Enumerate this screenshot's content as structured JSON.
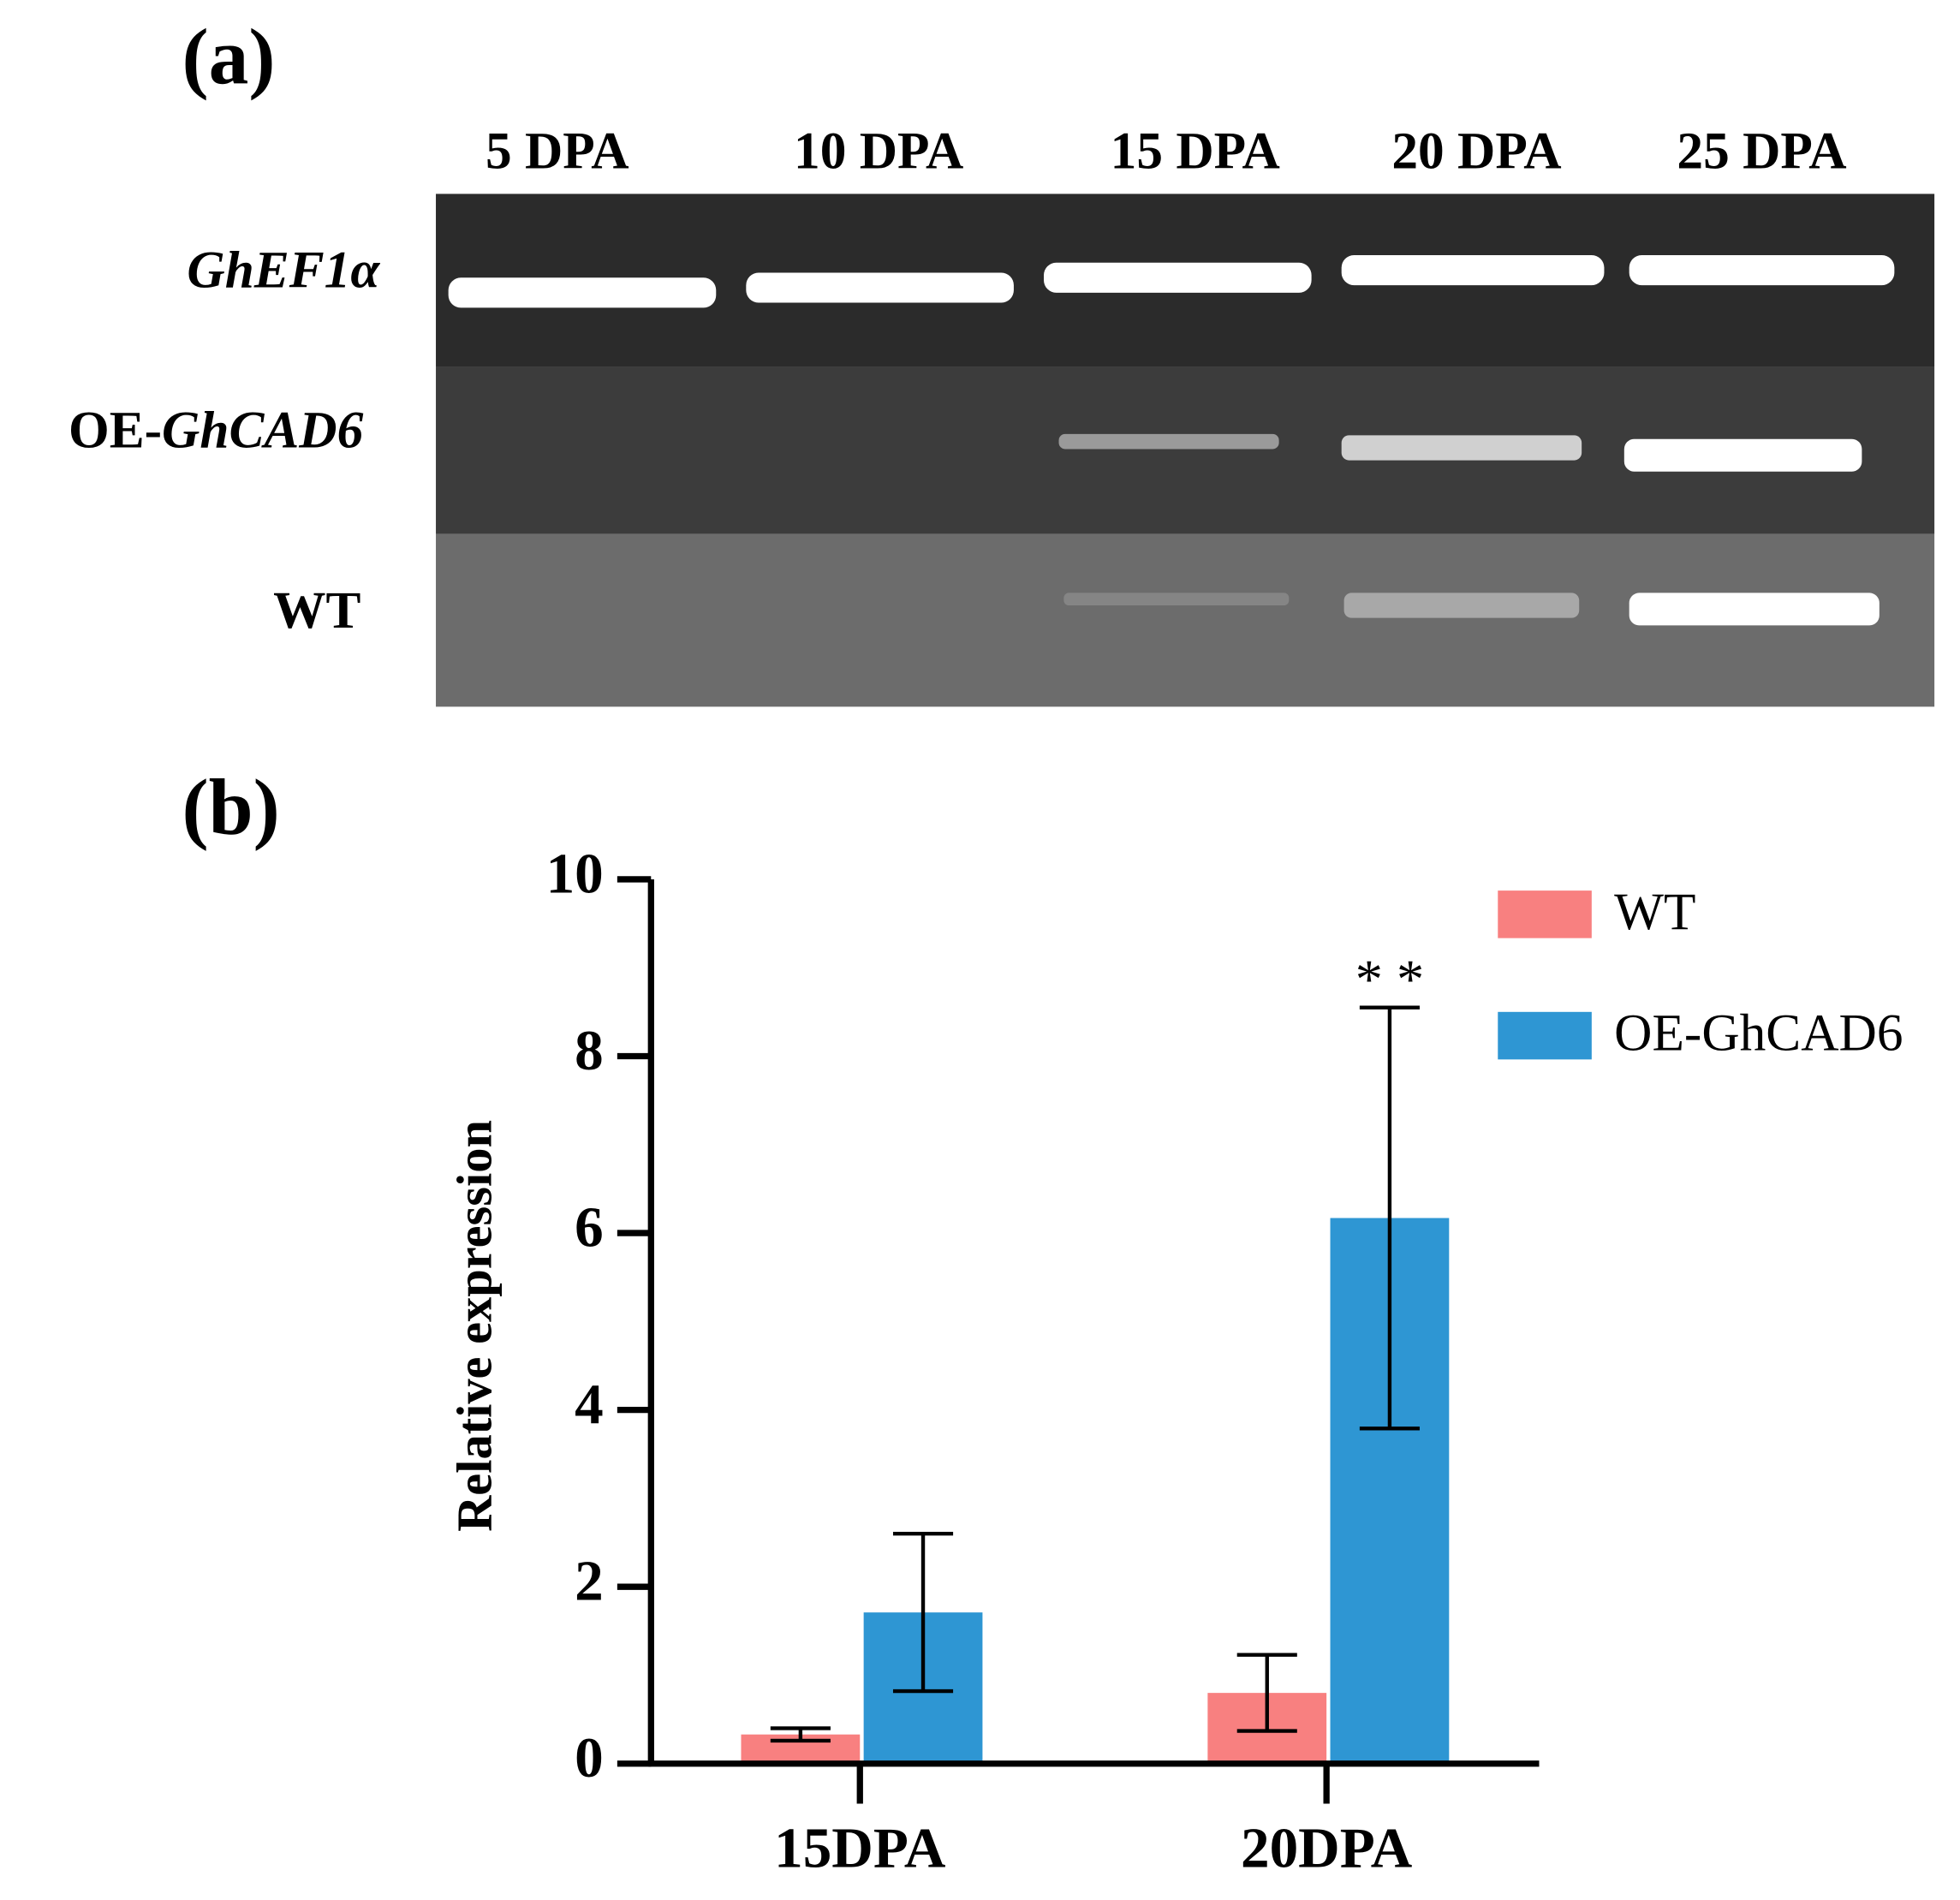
{
  "panel_a": {
    "label": "(a)",
    "lanes": [
      "5 DPA",
      "10 DPA",
      "15 DPA",
      "20 DPA",
      "25 DPA"
    ],
    "rows": [
      [
        "GhEF1α"
      ],
      [
        "OE-",
        "GhCAD6"
      ],
      [
        "WT"
      ]
    ]
  },
  "chart_data": {
    "type": "bar",
    "panel_label": "(b)",
    "y_label": "Relative  expression",
    "categories": [
      "15DPA",
      "20DPA"
    ],
    "series": [
      {
        "name": "WT",
        "color": "#f88080",
        "values": [
          0.33,
          0.8
        ],
        "errors": [
          0.07,
          0.43
        ]
      },
      {
        "name": "OE-GhCAD6",
        "color": "#2e96d3",
        "values": [
          1.71,
          6.17
        ],
        "errors": [
          0.89,
          2.38
        ]
      }
    ],
    "annotation": "* *",
    "ylim": [
      0,
      10
    ],
    "yticks": [
      0,
      2,
      4,
      6,
      8,
      10
    ]
  }
}
